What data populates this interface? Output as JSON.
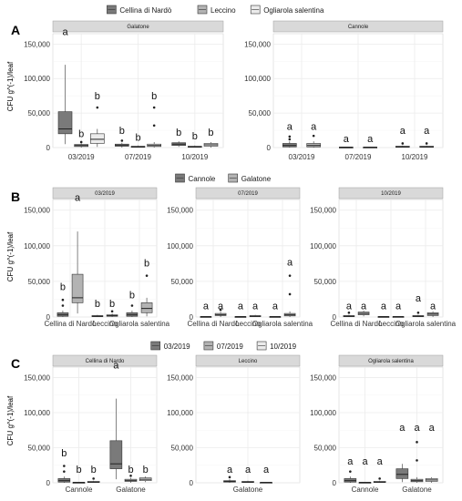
{
  "y_axis_label": "CFU g^(-1)/leaf",
  "fill_colors": {
    "dark": "#7a7a7a",
    "mid": "#b3b3b3",
    "light": "#ebebeb"
  },
  "chart_data": [
    {
      "panel": "A",
      "type": "box",
      "legend": [
        {
          "label": "Cellina di Nardò",
          "color_key": "dark"
        },
        {
          "label": "Leccino",
          "color_key": "mid"
        },
        {
          "label": "Ogliarola salentina",
          "color_key": "light"
        }
      ],
      "ylim": [
        0,
        165000
      ],
      "yticks": [
        0,
        50000,
        100000,
        150000
      ],
      "ytick_labels": [
        "0",
        "50,000",
        "100,000",
        "150,000"
      ],
      "facets": [
        {
          "strip": "Galatone",
          "categories": [
            "03/2019",
            "07/2019",
            "10/2019"
          ],
          "boxes": [
            {
              "cat": 0,
              "color": "dark",
              "stats": [
                5000,
                20000,
                27000,
                52000,
                120000
              ],
              "outliers": [],
              "label": "a",
              "label_y": 163000
            },
            {
              "cat": 0,
              "color": "mid",
              "stats": [
                0,
                1500,
                3000,
                4500,
                6000
              ],
              "outliers": [
                8000
              ],
              "label": "b",
              "label_y": 15000
            },
            {
              "cat": 0,
              "color": "light",
              "stats": [
                1000,
                6000,
                12000,
                20000,
                27000
              ],
              "outliers": [
                58000
              ],
              "label": "b",
              "label_y": 70000
            },
            {
              "cat": 1,
              "color": "dark",
              "stats": [
                0,
                2000,
                3000,
                5000,
                7000
              ],
              "outliers": [
                10000
              ],
              "label": "b",
              "label_y": 20000
            },
            {
              "cat": 1,
              "color": "mid",
              "stats": [
                0,
                500,
                1000,
                2000,
                3000
              ],
              "outliers": [],
              "label": "b",
              "label_y": 10000
            },
            {
              "cat": 1,
              "color": "light",
              "stats": [
                0,
                1500,
                3000,
                5000,
                8000
              ],
              "outliers": [
                32000,
                58000
              ],
              "label": "b",
              "label_y": 70000
            },
            {
              "cat": 2,
              "color": "dark",
              "stats": [
                1000,
                3000,
                5000,
                7000,
                9000
              ],
              "outliers": [],
              "label": "b",
              "label_y": 17000
            },
            {
              "cat": 2,
              "color": "mid",
              "stats": [
                0,
                500,
                1000,
                2000,
                3000
              ],
              "outliers": [],
              "label": "b",
              "label_y": 12000
            },
            {
              "cat": 2,
              "color": "light",
              "stats": [
                0,
                2000,
                4000,
                6000,
                8000
              ],
              "outliers": [],
              "label": "b",
              "label_y": 17000
            }
          ]
        },
        {
          "strip": "Cannole",
          "categories": [
            "03/2019",
            "07/2019",
            "10/2019"
          ],
          "boxes": [
            {
              "cat": 0,
              "color": "dark",
              "stats": [
                0,
                1000,
                3000,
                6000,
                9000
              ],
              "outliers": [
                12000,
                16000
              ],
              "label": "a",
              "label_y": 26000
            },
            {
              "cat": 0,
              "color": "mid",
              "stats": [
                0,
                1000,
                3000,
                6000,
                9000
              ],
              "outliers": [
                17000
              ],
              "label": "a",
              "label_y": 26000
            },
            {
              "cat": 1,
              "color": "dark",
              "stats": [
                0,
                300,
                500,
                800,
                1000
              ],
              "outliers": [],
              "label": "a",
              "label_y": 8000
            },
            {
              "cat": 1,
              "color": "mid",
              "stats": [
                0,
                300,
                500,
                800,
                1000
              ],
              "outliers": [],
              "label": "a",
              "label_y": 8000
            },
            {
              "cat": 2,
              "color": "dark",
              "stats": [
                0,
                500,
                1000,
                2000,
                3000
              ],
              "outliers": [
                6000
              ],
              "label": "a",
              "label_y": 20000
            },
            {
              "cat": 2,
              "color": "mid",
              "stats": [
                0,
                500,
                1000,
                2000,
                3000
              ],
              "outliers": [
                6000
              ],
              "label": "a",
              "label_y": 20000
            }
          ]
        }
      ]
    },
    {
      "panel": "B",
      "type": "box",
      "legend": [
        {
          "label": "Cannole",
          "color_key": "dark"
        },
        {
          "label": "Galatone",
          "color_key": "mid"
        }
      ],
      "ylim": [
        0,
        165000
      ],
      "yticks": [
        0,
        50000,
        100000,
        150000
      ],
      "ytick_labels": [
        "0",
        "50,000",
        "100,000",
        "150,000"
      ],
      "facets": [
        {
          "strip": "03/2019",
          "categories": [
            "Cellina di Nardò",
            "Leccino",
            "Ogliarola salentina"
          ],
          "boxes": [
            {
              "cat": 0,
              "color": "dark",
              "stats": [
                0,
                1000,
                3000,
                6000,
                9000
              ],
              "outliers": [
                16000,
                24000
              ],
              "label": "b",
              "label_y": 38000
            },
            {
              "cat": 0,
              "color": "mid",
              "stats": [
                5000,
                20000,
                27000,
                60000,
                120000
              ],
              "outliers": [],
              "label": "a",
              "label_y": 163000
            },
            {
              "cat": 1,
              "color": "dark",
              "stats": [
                0,
                500,
                1000,
                2000,
                3000
              ],
              "outliers": [],
              "label": "b",
              "label_y": 14000
            },
            {
              "cat": 1,
              "color": "mid",
              "stats": [
                0,
                1000,
                2000,
                3000,
                5000
              ],
              "outliers": [
                8000
              ],
              "label": "b",
              "label_y": 14000
            },
            {
              "cat": 2,
              "color": "dark",
              "stats": [
                0,
                1000,
                3000,
                6000,
                9000
              ],
              "outliers": [
                16000
              ],
              "label": "b",
              "label_y": 26000
            },
            {
              "cat": 2,
              "color": "mid",
              "stats": [
                1000,
                6000,
                12000,
                20000,
                27000
              ],
              "outliers": [
                58000
              ],
              "label": "b",
              "label_y": 71000
            }
          ]
        },
        {
          "strip": "07/2019",
          "categories": [
            "Cellina di Nardò",
            "Leccino",
            "Ogliarola salentina"
          ],
          "boxes": [
            {
              "cat": 0,
              "color": "dark",
              "stats": [
                0,
                300,
                500,
                800,
                1000
              ],
              "outliers": [],
              "label": "a",
              "label_y": 11000
            },
            {
              "cat": 0,
              "color": "mid",
              "stats": [
                0,
                2000,
                3000,
                5000,
                7000
              ],
              "outliers": [
                10000
              ],
              "label": "a",
              "label_y": 11000
            },
            {
              "cat": 1,
              "color": "dark",
              "stats": [
                0,
                300,
                500,
                800,
                1000
              ],
              "outliers": [],
              "label": "a",
              "label_y": 11000
            },
            {
              "cat": 1,
              "color": "mid",
              "stats": [
                0,
                500,
                1000,
                2000,
                3000
              ],
              "outliers": [],
              "label": "a",
              "label_y": 11000
            },
            {
              "cat": 2,
              "color": "dark",
              "stats": [
                0,
                300,
                500,
                800,
                1000
              ],
              "outliers": [],
              "label": "a",
              "label_y": 11000
            },
            {
              "cat": 2,
              "color": "mid",
              "stats": [
                0,
                1500,
                3000,
                5000,
                8000
              ],
              "outliers": [
                32000,
                58000
              ],
              "label": "a",
              "label_y": 72000
            }
          ]
        },
        {
          "strip": "10/2019",
          "categories": [
            "Cellina di Nardò",
            "Leccino",
            "Ogliarola salentina"
          ],
          "boxes": [
            {
              "cat": 0,
              "color": "dark",
              "stats": [
                0,
                500,
                1000,
                2000,
                3000
              ],
              "outliers": [
                6000
              ],
              "label": "a",
              "label_y": 11000
            },
            {
              "cat": 0,
              "color": "mid",
              "stats": [
                1000,
                3000,
                5000,
                7000,
                9000
              ],
              "outliers": [],
              "label": "a",
              "label_y": 11000
            },
            {
              "cat": 1,
              "color": "dark",
              "stats": [
                0,
                300,
                500,
                800,
                1000
              ],
              "outliers": [],
              "label": "a",
              "label_y": 11000
            },
            {
              "cat": 1,
              "color": "mid",
              "stats": [
                0,
                300,
                500,
                800,
                1000
              ],
              "outliers": [],
              "label": "a",
              "label_y": 11000
            },
            {
              "cat": 2,
              "color": "dark",
              "stats": [
                0,
                500,
                1000,
                2000,
                3000
              ],
              "outliers": [
                6000
              ],
              "label": "a",
              "label_y": 22000
            },
            {
              "cat": 2,
              "color": "mid",
              "stats": [
                0,
                2000,
                4000,
                6000,
                8000
              ],
              "outliers": [],
              "label": "a",
              "label_y": 11000
            }
          ]
        }
      ]
    },
    {
      "panel": "C",
      "type": "box",
      "legend": [
        {
          "label": "03/2019",
          "color_key": "dark"
        },
        {
          "label": "07/2019",
          "color_key": "mid"
        },
        {
          "label": "10/2019",
          "color_key": "light"
        }
      ],
      "ylim": [
        0,
        165000
      ],
      "yticks": [
        0,
        50000,
        100000,
        150000
      ],
      "ytick_labels": [
        "0",
        "50,000",
        "100,000",
        "150,000"
      ],
      "facets": [
        {
          "strip": "Cellina di Nardo",
          "categories": [
            "Cannole",
            "Galatone"
          ],
          "boxes": [
            {
              "cat": 0,
              "color": "dark",
              "stats": [
                0,
                1000,
                3000,
                6000,
                9000
              ],
              "outliers": [
                16000,
                24000
              ],
              "label": "b",
              "label_y": 38000
            },
            {
              "cat": 0,
              "color": "mid",
              "stats": [
                0,
                300,
                500,
                800,
                1000
              ],
              "outliers": [],
              "label": "b",
              "label_y": 14000
            },
            {
              "cat": 0,
              "color": "light",
              "stats": [
                0,
                500,
                1000,
                2000,
                3000
              ],
              "outliers": [
                6000
              ],
              "label": "b",
              "label_y": 14000
            },
            {
              "cat": 1,
              "color": "dark",
              "stats": [
                5000,
                20000,
                27000,
                60000,
                120000
              ],
              "outliers": [],
              "label": "a",
              "label_y": 163000
            },
            {
              "cat": 1,
              "color": "mid",
              "stats": [
                0,
                2000,
                3000,
                5000,
                7000
              ],
              "outliers": [
                10000
              ],
              "label": "b",
              "label_y": 14000
            },
            {
              "cat": 1,
              "color": "light",
              "stats": [
                1000,
                3000,
                5000,
                7000,
                9000
              ],
              "outliers": [],
              "label": "b",
              "label_y": 14000
            }
          ]
        },
        {
          "strip": "Leccino",
          "categories": [
            "Galatone"
          ],
          "boxes": [
            {
              "cat": 0,
              "color": "dark",
              "stats": [
                0,
                1000,
                2000,
                3000,
                5000
              ],
              "outliers": [
                8000
              ],
              "label": "a",
              "label_y": 14000
            },
            {
              "cat": 0,
              "color": "mid",
              "stats": [
                0,
                500,
                1000,
                2000,
                3000
              ],
              "outliers": [],
              "label": "a",
              "label_y": 14000
            },
            {
              "cat": 0,
              "color": "light",
              "stats": [
                0,
                300,
                500,
                800,
                1000
              ],
              "outliers": [],
              "label": "a",
              "label_y": 14000
            }
          ]
        },
        {
          "strip": "Ogliarola salentina",
          "categories": [
            "Cannole",
            "Galatone"
          ],
          "boxes": [
            {
              "cat": 0,
              "color": "dark",
              "stats": [
                0,
                1000,
                3000,
                6000,
                9000
              ],
              "outliers": [
                16000
              ],
              "label": "a",
              "label_y": 26000
            },
            {
              "cat": 0,
              "color": "mid",
              "stats": [
                0,
                300,
                500,
                800,
                1000
              ],
              "outliers": [],
              "label": "a",
              "label_y": 26000
            },
            {
              "cat": 0,
              "color": "light",
              "stats": [
                0,
                500,
                1000,
                2000,
                3000
              ],
              "outliers": [
                6000
              ],
              "label": "a",
              "label_y": 26000
            },
            {
              "cat": 1,
              "color": "dark",
              "stats": [
                1000,
                6000,
                12000,
                20000,
                27000
              ],
              "outliers": [],
              "label": "a",
              "label_y": 74000
            },
            {
              "cat": 1,
              "color": "mid",
              "stats": [
                0,
                1500,
                3000,
                5000,
                8000
              ],
              "outliers": [
                32000,
                58000
              ],
              "label": "a",
              "label_y": 74000
            },
            {
              "cat": 1,
              "color": "light",
              "stats": [
                0,
                2000,
                4000,
                6000,
                8000
              ],
              "outliers": [],
              "label": "a",
              "label_y": 74000
            }
          ]
        }
      ]
    }
  ]
}
